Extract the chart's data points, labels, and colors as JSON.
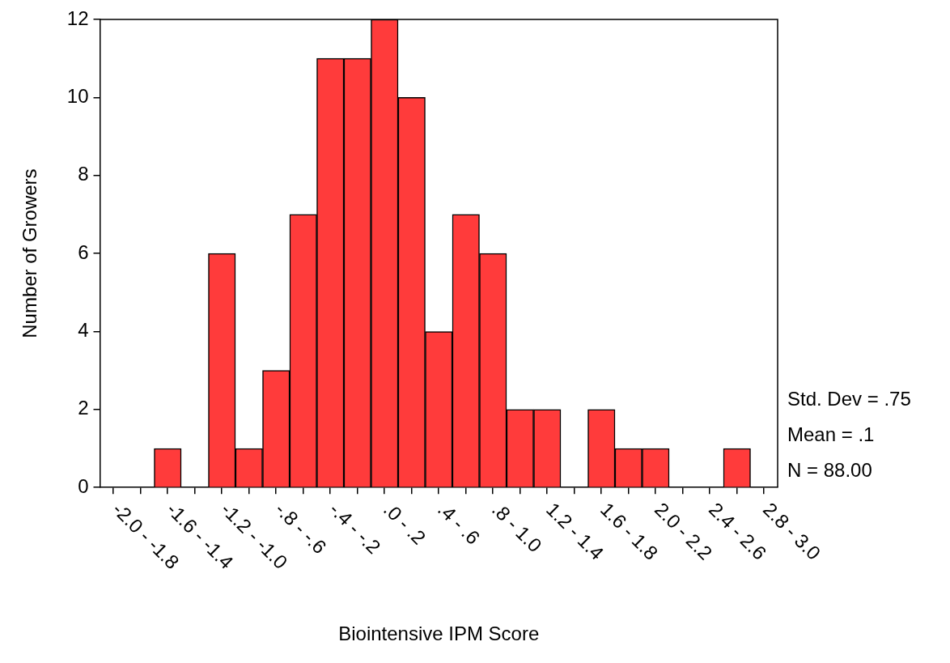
{
  "chart_data": {
    "type": "bar",
    "xlabel": "Biointensive IPM Score",
    "ylabel": "Number of Growers",
    "categories": [
      "-2.0 - -1.8",
      null,
      "-1.6 - -1.4",
      null,
      "-1.2 - -1.0",
      null,
      "-.8 - -.6",
      null,
      "-.4 - -.2",
      null,
      ".0 - .2",
      null,
      ".4 - .6",
      null,
      ".8 - 1.0",
      null,
      "1.2 - 1.4",
      null,
      "1.6 - 1.8",
      null,
      "2.0 - 2.2",
      null,
      "2.4 - 2.6",
      null,
      "2.8 - 3.0"
    ],
    "values": [
      0,
      0,
      1,
      0,
      6,
      1,
      3,
      7,
      11,
      11,
      12,
      10,
      4,
      7,
      6,
      2,
      2,
      0,
      2,
      1,
      1,
      0,
      0,
      1,
      0
    ],
    "color": "#ff3b3b",
    "ylim": [
      0,
      12
    ],
    "yticks": [
      0,
      2,
      4,
      6,
      8,
      10,
      12
    ],
    "grid": false,
    "legend": false,
    "annotations": [
      "Std. Dev = .75",
      "Mean = .1",
      "N = 88.00"
    ]
  }
}
